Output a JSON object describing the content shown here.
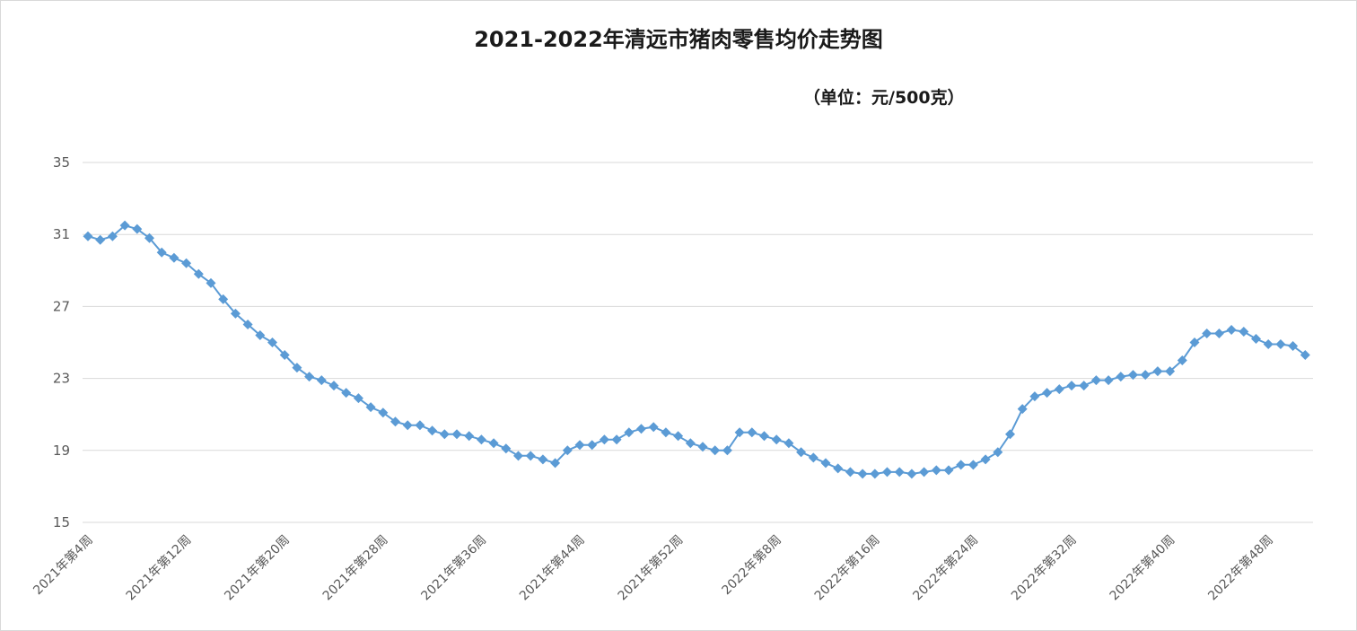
{
  "chart_data": {
    "type": "line",
    "title": "2021-2022年清远市猪肉零售均价走势图",
    "subtitle": "（单位：元/500克）",
    "ylim": [
      15,
      35
    ],
    "yticks": [
      15,
      19,
      23,
      27,
      31,
      35
    ],
    "grid": true,
    "legend": "none",
    "color": "#5b9bd5",
    "marker": "diamond",
    "x_tick_labels": [
      {
        "index": 0,
        "label": "2021年第4周"
      },
      {
        "index": 8,
        "label": "2021年第12周"
      },
      {
        "index": 16,
        "label": "2021年第20周"
      },
      {
        "index": 24,
        "label": "2021年第28周"
      },
      {
        "index": 32,
        "label": "2021年第36周"
      },
      {
        "index": 40,
        "label": "2021年第44周"
      },
      {
        "index": 48,
        "label": "2021年第52周"
      },
      {
        "index": 56,
        "label": "2022年第8周"
      },
      {
        "index": 64,
        "label": "2022年第16周"
      },
      {
        "index": 72,
        "label": "2022年第24周"
      },
      {
        "index": 80,
        "label": "2022年第32周"
      },
      {
        "index": 88,
        "label": "2022年第40周"
      },
      {
        "index": 96,
        "label": "2022年第48周"
      }
    ],
    "series": [
      {
        "values": [
          30.9,
          30.7,
          30.9,
          31.5,
          31.3,
          30.8,
          30.0,
          29.7,
          29.4,
          28.8,
          28.3,
          27.4,
          26.6,
          26.0,
          25.4,
          25.0,
          24.3,
          23.6,
          23.1,
          22.9,
          22.6,
          22.2,
          21.9,
          21.4,
          21.1,
          20.6,
          20.4,
          20.4,
          20.1,
          19.9,
          19.9,
          19.8,
          19.6,
          19.4,
          19.1,
          18.7,
          18.7,
          18.5,
          18.3,
          19.0,
          19.3,
          19.3,
          19.6,
          19.6,
          20.0,
          20.2,
          20.3,
          20.0,
          19.8,
          19.4,
          19.2,
          19.0,
          19.0,
          20.0,
          20.0,
          19.8,
          19.6,
          19.4,
          18.9,
          18.6,
          18.3,
          18.0,
          17.8,
          17.7,
          17.7,
          17.8,
          17.8,
          17.7,
          17.8,
          17.9,
          17.9,
          18.2,
          18.2,
          18.5,
          18.9,
          19.9,
          21.3,
          22.0,
          22.2,
          22.4,
          22.6,
          22.6,
          22.9,
          22.9,
          23.1,
          23.2,
          23.2,
          23.4,
          23.4,
          24.0,
          25.0,
          25.5,
          25.5,
          25.7,
          25.6,
          25.2,
          24.9,
          24.9,
          24.8,
          24.3
        ]
      }
    ]
  }
}
